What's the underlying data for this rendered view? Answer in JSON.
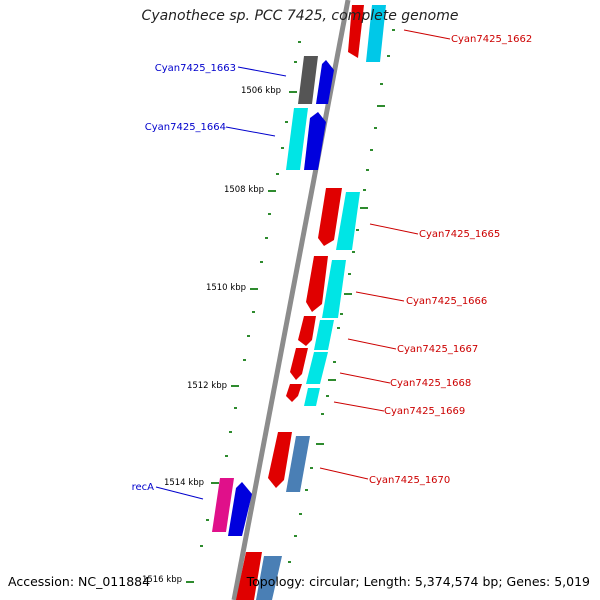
{
  "title": "Cyanothece sp. PCC 7425, complete genome",
  "footer": {
    "accession": "Accession: NC_011884",
    "topology": "Topology: circular; Length: 5,374,574 bp; Genes: 5,019"
  },
  "ticks": [
    "1506 kbp",
    "1508 kbp",
    "1510 kbp",
    "1512 kbp",
    "1514 kbp",
    "1516 kbp"
  ],
  "gene_labels": [
    {
      "text": "Cyan7425_1662",
      "color": "#cc0000"
    },
    {
      "text": "Cyan7425_1663",
      "color": "#0000cc"
    },
    {
      "text": "Cyan7425_1664",
      "color": "#0000cc"
    },
    {
      "text": "Cyan7425_1665",
      "color": "#cc0000"
    },
    {
      "text": "Cyan7425_1666",
      "color": "#cc0000"
    },
    {
      "text": "Cyan7425_1667",
      "color": "#cc0000"
    },
    {
      "text": "Cyan7425_1668",
      "color": "#cc0000"
    },
    {
      "text": "Cyan7425_1669",
      "color": "#cc0000"
    },
    {
      "text": "Cyan7425_1670",
      "color": "#cc0000"
    },
    {
      "text": "recA",
      "color": "#0000cc"
    }
  ],
  "colors": {
    "backbone": "#8c8c8c",
    "tick_dots": "#2e8b2e",
    "cds_red": "#e00000",
    "cds_cyan": "#00e5e5",
    "cds_blue": "#0000dd",
    "cds_steel": "#4a7fb5",
    "cds_gray": "#555555",
    "cds_pink": "#e0108a"
  }
}
